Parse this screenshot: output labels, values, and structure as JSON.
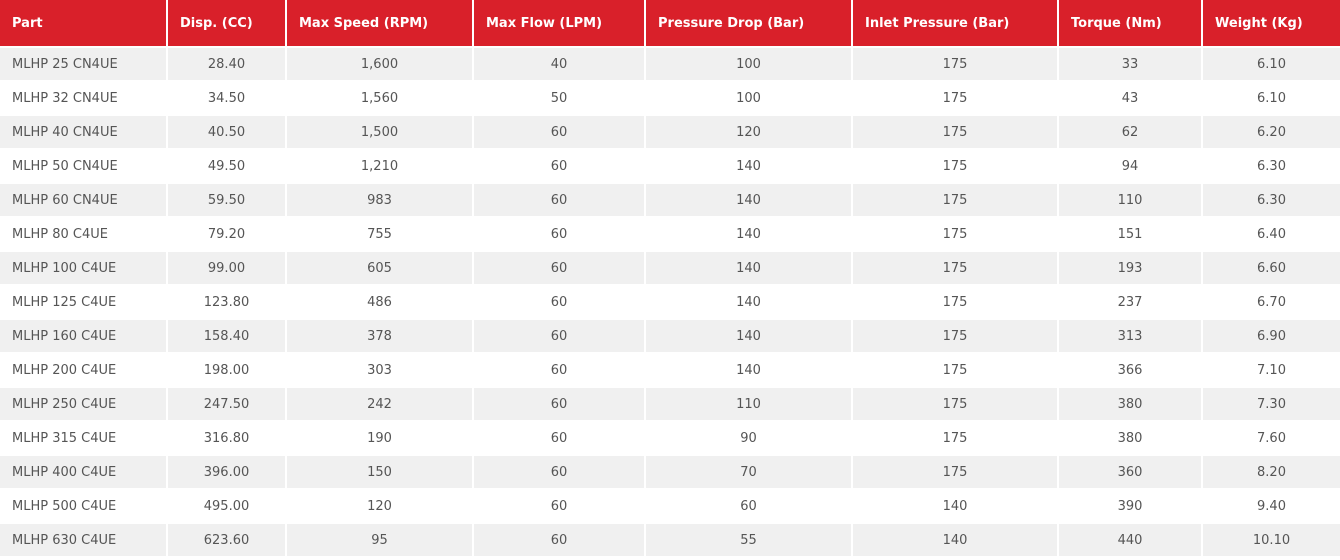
{
  "table": {
    "header": [
      "Part",
      "Disp. (CC)",
      "Max Speed (RPM)",
      "Max Flow (LPM)",
      "Pressure Drop (Bar)",
      "Inlet Pressure (Bar)",
      "Torque (Nm)",
      "Weight (Kg)"
    ],
    "rows": [
      [
        "MLHP 25 CN4UE",
        "28.40",
        "1,600",
        "40",
        "100",
        "175",
        "33",
        "6.10"
      ],
      [
        "MLHP 32 CN4UE",
        "34.50",
        "1,560",
        "50",
        "100",
        "175",
        "43",
        "6.10"
      ],
      [
        "MLHP 40 CN4UE",
        "40.50",
        "1,500",
        "60",
        "120",
        "175",
        "62",
        "6.20"
      ],
      [
        "MLHP 50 CN4UE",
        "49.50",
        "1,210",
        "60",
        "140",
        "175",
        "94",
        "6.30"
      ],
      [
        "MLHP 60 CN4UE",
        "59.50",
        "983",
        "60",
        "140",
        "175",
        "110",
        "6.30"
      ],
      [
        "MLHP 80 C4UE",
        "79.20",
        "755",
        "60",
        "140",
        "175",
        "151",
        "6.40"
      ],
      [
        "MLHP 100 C4UE",
        "99.00",
        "605",
        "60",
        "140",
        "175",
        "193",
        "6.60"
      ],
      [
        "MLHP 125 C4UE",
        "123.80",
        "486",
        "60",
        "140",
        "175",
        "237",
        "6.70"
      ],
      [
        "MLHP 160 C4UE",
        "158.40",
        "378",
        "60",
        "140",
        "175",
        "313",
        "6.90"
      ],
      [
        "MLHP 200 C4UE",
        "198.00",
        "303",
        "60",
        "140",
        "175",
        "366",
        "7.10"
      ],
      [
        "MLHP 250 C4UE",
        "247.50",
        "242",
        "60",
        "110",
        "175",
        "380",
        "7.30"
      ],
      [
        "MLHP 315 C4UE",
        "316.80",
        "190",
        "60",
        "90",
        "175",
        "380",
        "7.60"
      ],
      [
        "MLHP 400 C4UE",
        "396.00",
        "150",
        "60",
        "70",
        "175",
        "360",
        "8.20"
      ],
      [
        "MLHP 500 C4UE",
        "495.00",
        "120",
        "60",
        "60",
        "140",
        "390",
        "9.40"
      ],
      [
        "MLHP 630 C4UE",
        "623.60",
        "95",
        "60",
        "55",
        "140",
        "440",
        "10.10"
      ]
    ]
  }
}
